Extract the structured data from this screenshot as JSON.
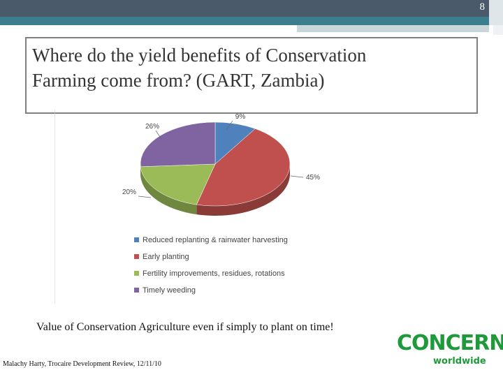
{
  "slide": {
    "number": "8",
    "title_line1": "Where do the yield benefits of Conservation",
    "title_line2": "Farming come from? (GART, Zambia)",
    "caption": "Value of Conservation Agriculture even if simply to plant on time!",
    "footer": "Malachy Harty, Trocaire Development Review, 12/11/10"
  },
  "logo": {
    "top": "CONCERN",
    "bottom": "worldwide",
    "color": "#1f9a3a"
  },
  "chart_data": {
    "type": "pie",
    "title": "",
    "legend_position": "bottom",
    "slices": [
      {
        "label": "Reduced replanting & rainwater harvesting",
        "value": 9,
        "value_label": "9%",
        "color": "#4f81bd"
      },
      {
        "label": "Early planting",
        "value": 45,
        "value_label": "45%",
        "color": "#c0504d"
      },
      {
        "label": "Fertility improvements, residues, rotations",
        "value": 20,
        "value_label": "20%",
        "color": "#9bbb59"
      },
      {
        "label": "Timely weeding",
        "value": 26,
        "value_label": "26%",
        "color": "#8064a2"
      }
    ]
  }
}
